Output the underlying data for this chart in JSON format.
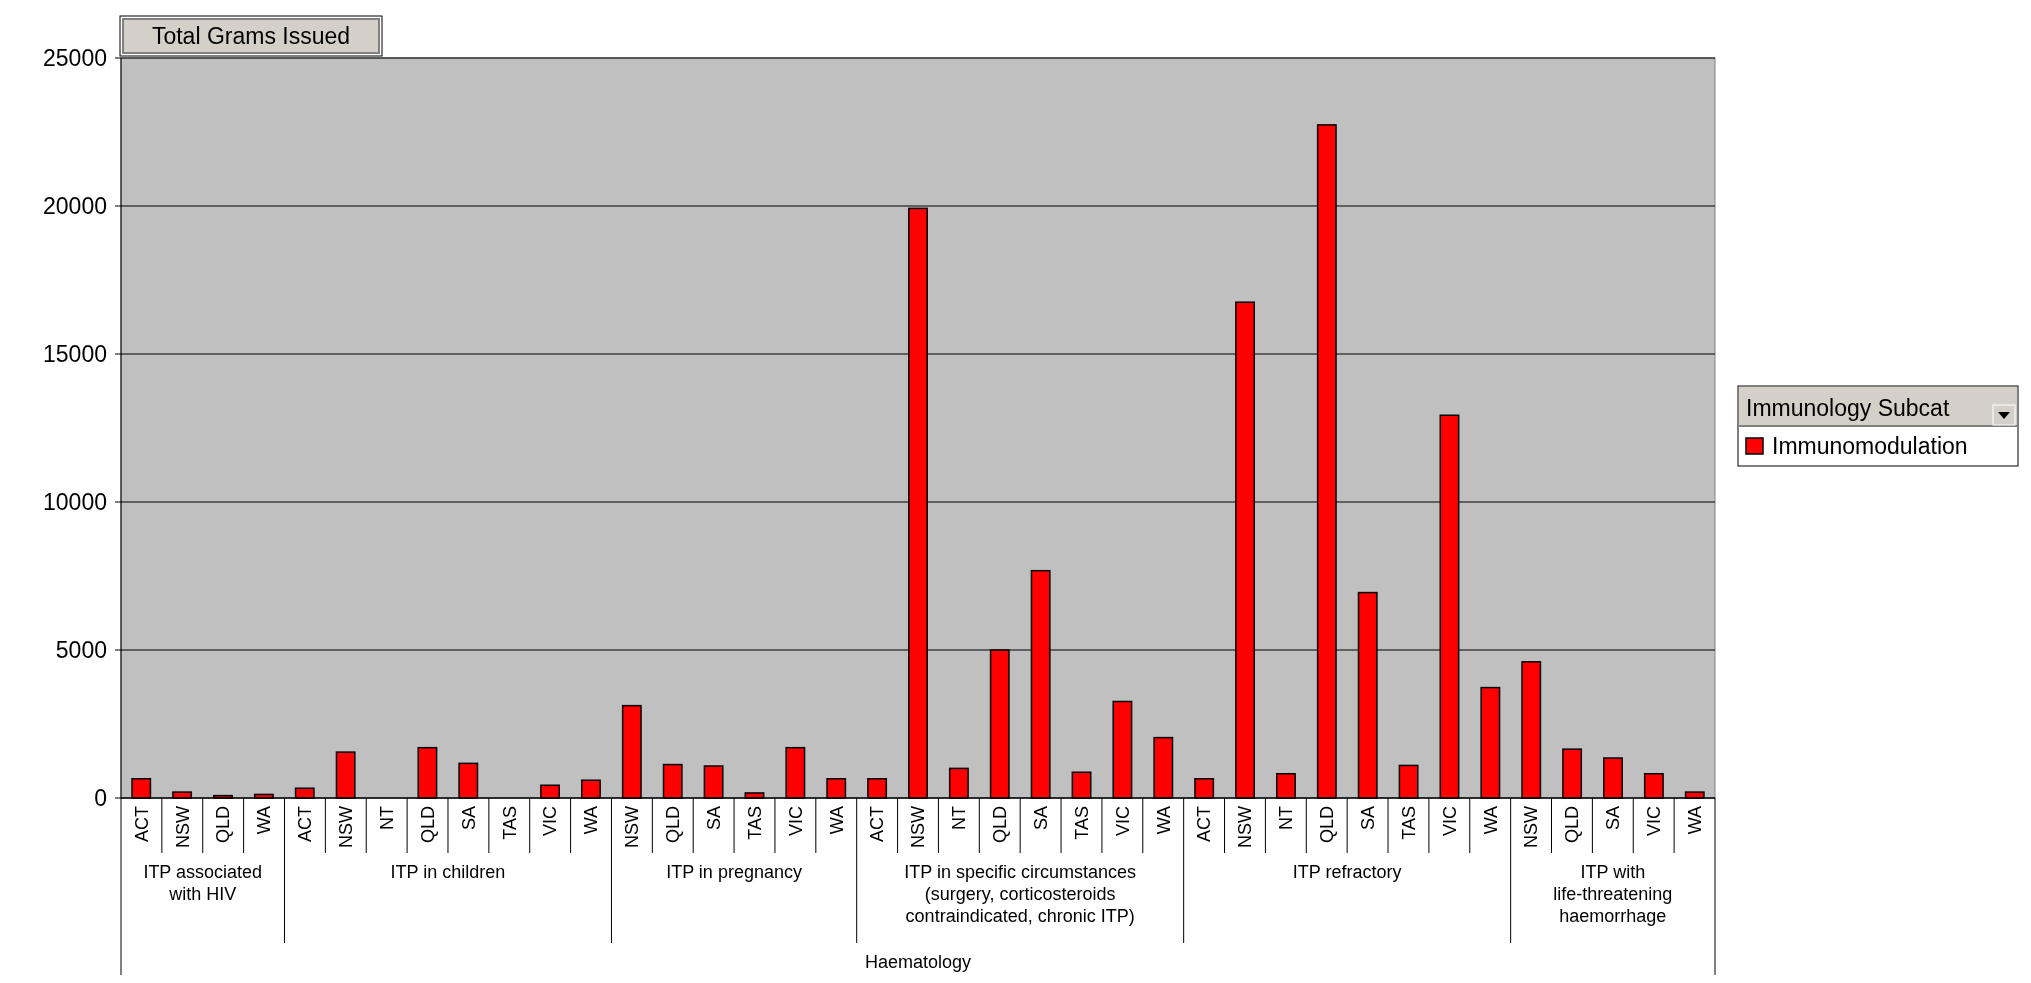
{
  "chart_data": {
    "type": "bar",
    "title": "Total Grams Issued",
    "legend_title": "Immunology Subcat",
    "annotations": [
      "ITP associated with HIV",
      "ITP in children",
      "ITP in pregnancy",
      "ITP in specific circumstances (surgery, corticosteroids contraindicated, chronic ITP)",
      "ITP refractory",
      "ITP with life-threatening haemorrhage",
      "Haematology"
    ],
    "categories": [
      "ACT",
      "NSW",
      "QLD",
      "WA",
      "ACT",
      "NSW",
      "NT",
      "QLD",
      "SA",
      "TAS",
      "VIC",
      "WA",
      "NSW",
      "QLD",
      "SA",
      "TAS",
      "VIC",
      "WA",
      "ACT",
      "NSW",
      "NT",
      "QLD",
      "SA",
      "TAS",
      "VIC",
      "WA",
      "ACT",
      "NSW",
      "NT",
      "QLD",
      "SA",
      "TAS",
      "VIC",
      "WA",
      "NSW",
      "QLD",
      "SA",
      "VIC",
      "WA"
    ],
    "series": [
      {
        "name": "Immunomodulation",
        "color": "#ff0000",
        "values": [
          650,
          200,
          80,
          120,
          330,
          1550,
          null,
          1700,
          1170,
          null,
          430,
          600,
          3120,
          1130,
          1080,
          170,
          1700,
          650,
          650,
          19920,
          1000,
          5000,
          7680,
          870,
          3260,
          2040,
          650,
          16750,
          820,
          22740,
          6940,
          1100,
          12930,
          3730,
          4600,
          1650,
          1350,
          820,
          200
        ]
      }
    ],
    "ylim": [
      0,
      25000
    ],
    "yticks": [
      0,
      5000,
      10000,
      15000,
      20000,
      25000
    ],
    "grid": "y",
    "legend": "right"
  }
}
